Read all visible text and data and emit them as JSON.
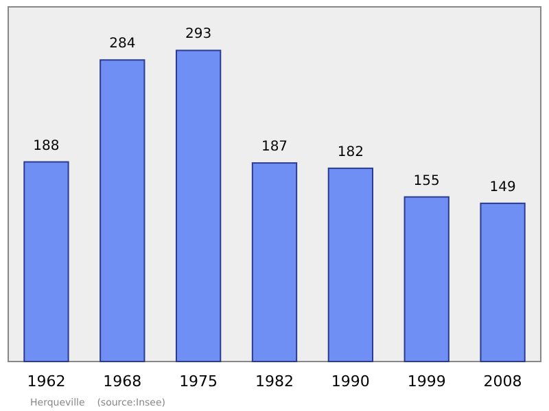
{
  "chart_data": {
    "type": "bar",
    "categories": [
      "1962",
      "1968",
      "1975",
      "1982",
      "1990",
      "1999",
      "2008"
    ],
    "values": [
      188,
      284,
      293,
      187,
      182,
      155,
      149
    ],
    "color": "#6f8ff5",
    "data_labels": true,
    "annotations": [
      "Herqueville    (source:Insee)"
    ]
  }
}
